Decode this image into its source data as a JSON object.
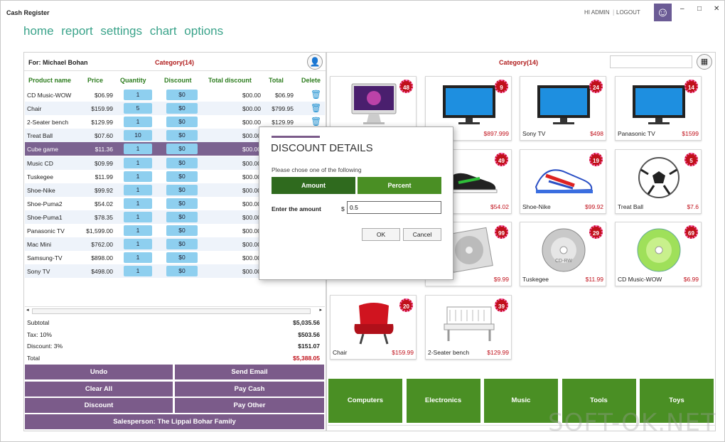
{
  "app": {
    "title": "Cash Register",
    "hi": "HI ADMIN",
    "sep": "|",
    "logout": "LOGOUT",
    "smiley": "☺"
  },
  "window": {
    "min": "–",
    "max": "□",
    "close": "✕"
  },
  "nav": [
    "home",
    "report",
    "settings",
    "chart",
    "options"
  ],
  "left": {
    "for": "For: Michael Bohan",
    "category": "Category(14)",
    "person_icon": "👤",
    "headers": [
      "Product name",
      "Price",
      "Quantity",
      "Discount",
      "Total discount",
      "Total",
      "Delete"
    ],
    "rows": [
      {
        "name": "CD Music-WOW",
        "price": "$06.99",
        "qty": "1",
        "disc": "$0",
        "tdisc": "$00.00",
        "total": "$06.99"
      },
      {
        "name": "Chair",
        "price": "$159.99",
        "qty": "5",
        "disc": "$0",
        "tdisc": "$00.00",
        "total": "$799.95"
      },
      {
        "name": "2-Seater bench",
        "price": "$129.99",
        "qty": "1",
        "disc": "$0",
        "tdisc": "$00.00",
        "total": "$129.99"
      },
      {
        "name": "Treat Ball",
        "price": "$07.60",
        "qty": "10",
        "disc": "$0",
        "tdisc": "$00.00",
        "total": ""
      },
      {
        "name": "Cube game",
        "price": "$11.36",
        "qty": "1",
        "disc": "$0",
        "tdisc": "$00.00",
        "total": ""
      },
      {
        "name": "Music CD",
        "price": "$09.99",
        "qty": "1",
        "disc": "$0",
        "tdisc": "$00.00",
        "total": ""
      },
      {
        "name": "Tuskegee",
        "price": "$11.99",
        "qty": "1",
        "disc": "$0",
        "tdisc": "$00.00",
        "total": ""
      },
      {
        "name": "Shoe-Nike",
        "price": "$99.92",
        "qty": "1",
        "disc": "$0",
        "tdisc": "$00.00",
        "total": ""
      },
      {
        "name": "Shoe-Puma2",
        "price": "$54.02",
        "qty": "1",
        "disc": "$0",
        "tdisc": "$00.00",
        "total": ""
      },
      {
        "name": "Shoe-Puma1",
        "price": "$78.35",
        "qty": "1",
        "disc": "$0",
        "tdisc": "$00.00",
        "total": ""
      },
      {
        "name": "Panasonic TV",
        "price": "$1,599.00",
        "qty": "1",
        "disc": "$0",
        "tdisc": "$00.00",
        "total": ""
      },
      {
        "name": "Mac Mini",
        "price": "$762.00",
        "qty": "1",
        "disc": "$0",
        "tdisc": "$00.00",
        "total": ""
      },
      {
        "name": "Samsung-TV",
        "price": "$898.00",
        "qty": "1",
        "disc": "$0",
        "tdisc": "$00.00",
        "total": ""
      },
      {
        "name": "Sony TV",
        "price": "$498.00",
        "qty": "1",
        "disc": "$0",
        "tdisc": "$00.00",
        "total": ""
      }
    ],
    "totals": [
      {
        "label": "Subtotal",
        "value": "$5,035.56"
      },
      {
        "label": "Tax: 10%",
        "value": "$503.56"
      },
      {
        "label": "Discount: 3%",
        "value": "$151.07"
      },
      {
        "label": "Total",
        "value": "$5,388.05"
      }
    ],
    "buttons": {
      "undo": "Undo",
      "email": "Send Email",
      "clear": "Clear All",
      "cash": "Pay Cash",
      "discount": "Discount",
      "other": "Pay Other",
      "salesperson": "Salesperson: The Lippai Bohar Family"
    }
  },
  "right": {
    "category": "Category(14)",
    "search_value": "",
    "qr_icon": "▦",
    "products": [
      {
        "name": "",
        "price": "",
        "badge": "48",
        "icon": "imac"
      },
      {
        "name": "TV",
        "price": "$897.999",
        "badge": "9",
        "icon": "tv"
      },
      {
        "name": "Sony TV",
        "price": "$498",
        "badge": "24",
        "icon": "tv"
      },
      {
        "name": "Panasonic TV",
        "price": "$1599",
        "badge": "14",
        "icon": "tv"
      },
      {
        "name": "",
        "price": "",
        "badge": "",
        "icon": ""
      },
      {
        "name": "ma2",
        "price": "$54.02",
        "badge": "49",
        "icon": "shoe-black"
      },
      {
        "name": "Shoe-Nike",
        "price": "$99.92",
        "badge": "19",
        "icon": "shoe-color"
      },
      {
        "name": "Treat Ball",
        "price": "$7.6",
        "badge": "5",
        "icon": "ball"
      },
      {
        "name": "",
        "price": "",
        "badge": "",
        "icon": ""
      },
      {
        "name": "",
        "price": "$9.99",
        "badge": "99",
        "icon": "cd-case"
      },
      {
        "name": "Tuskegee",
        "price": "$11.99",
        "badge": "29",
        "icon": "cd"
      },
      {
        "name": "CD Music-WOW",
        "price": "$6.99",
        "badge": "69",
        "icon": "cd-green"
      },
      {
        "name": "Chair",
        "price": "$159.99",
        "badge": "20",
        "icon": "chair"
      },
      {
        "name": "2-Seater bench",
        "price": "$129.99",
        "badge": "39",
        "icon": "bench"
      }
    ],
    "categories": [
      "Computers",
      "Electronics",
      "Music",
      "Tools",
      "Toys"
    ]
  },
  "dialog": {
    "title": "DISCOUNT DETAILS",
    "subtitle": "Please chose one of the following",
    "amount_tab": "Amount",
    "percent_tab": "Percent",
    "enter_label": "Enter the amount",
    "currency": "$",
    "amount_value": "0.5",
    "ok": "OK",
    "cancel": "Cancel"
  },
  "watermark": "SOFT-OK.NET",
  "colors": {
    "accent": "#7b5b8a",
    "green": "#4a8f24",
    "dark_green": "#2f6a1e",
    "red": "#c0101a",
    "nav": "#3aa38a"
  }
}
